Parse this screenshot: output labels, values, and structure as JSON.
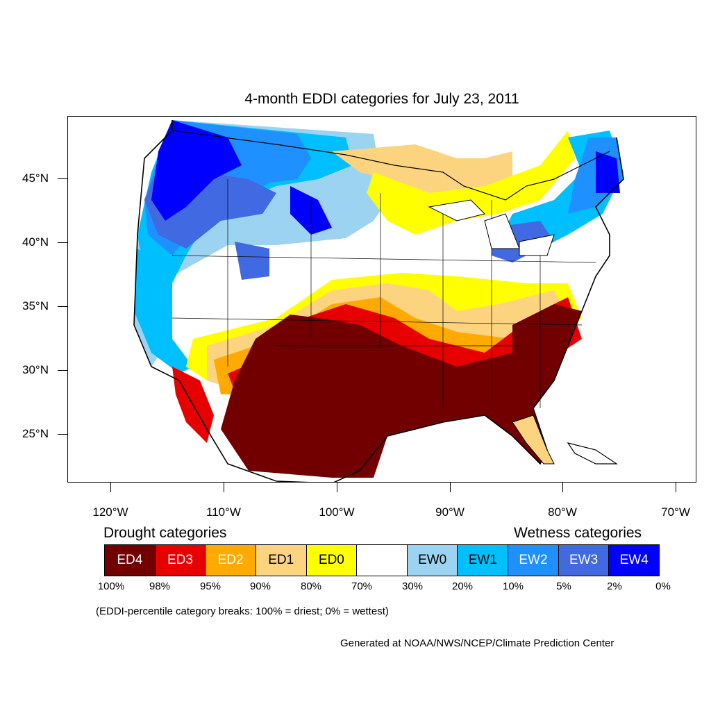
{
  "title": "4-month EDDI categories for July 23, 2011",
  "map": {
    "lat_labels": [
      "45°N",
      "40°N",
      "35°N",
      "30°N",
      "25°N"
    ],
    "lon_labels": [
      "120°W",
      "110°W",
      "100°W",
      "90°W",
      "80°W",
      "70°W"
    ],
    "colors": {
      "ED4": "#730000",
      "ED3": "#e60000",
      "ED2": "#ffaa00",
      "ED1": "#fcd37f",
      "ED0": "#ffff00",
      "NONE": "#ffffff",
      "EW0": "#9cd3f0",
      "EW1": "#00bfff",
      "EW2": "#1e90ff",
      "EW3": "#4169e1",
      "EW4": "#0000ff",
      "boundary": "#000000"
    }
  },
  "legend": {
    "drought_heading": "Drought categories",
    "wetness_heading": "Wetness categories",
    "categories": [
      {
        "label": "ED4",
        "color": "#730000",
        "text_color": "#ffffff"
      },
      {
        "label": "ED3",
        "color": "#e60000",
        "text_color": "#ffffff"
      },
      {
        "label": "ED2",
        "color": "#ffaa00",
        "text_color": "#ffffff"
      },
      {
        "label": "ED1",
        "color": "#fcd37f",
        "text_color": "#000000"
      },
      {
        "label": "ED0",
        "color": "#ffff00",
        "text_color": "#000000"
      },
      {
        "label": "",
        "color": "#ffffff",
        "text_color": "#000000"
      },
      {
        "label": "EW0",
        "color": "#9cd3f0",
        "text_color": "#000000"
      },
      {
        "label": "EW1",
        "color": "#00bfff",
        "text_color": "#000000"
      },
      {
        "label": "EW2",
        "color": "#1e90ff",
        "text_color": "#ffffff"
      },
      {
        "label": "EW3",
        "color": "#4169e1",
        "text_color": "#ffffff"
      },
      {
        "label": "EW4",
        "color": "#0000ff",
        "text_color": "#ffffff"
      }
    ],
    "breaks": [
      "100%",
      "98%",
      "95%",
      "90%",
      "80%",
      "70%",
      "30%",
      "20%",
      "10%",
      "5%",
      "2%",
      "0%"
    ]
  },
  "note": "(EDDI-percentile category breaks: 100% = driest; 0% = wettest)",
  "credit": "Generated at NOAA/NWS/NCEP/Climate Prediction Center"
}
